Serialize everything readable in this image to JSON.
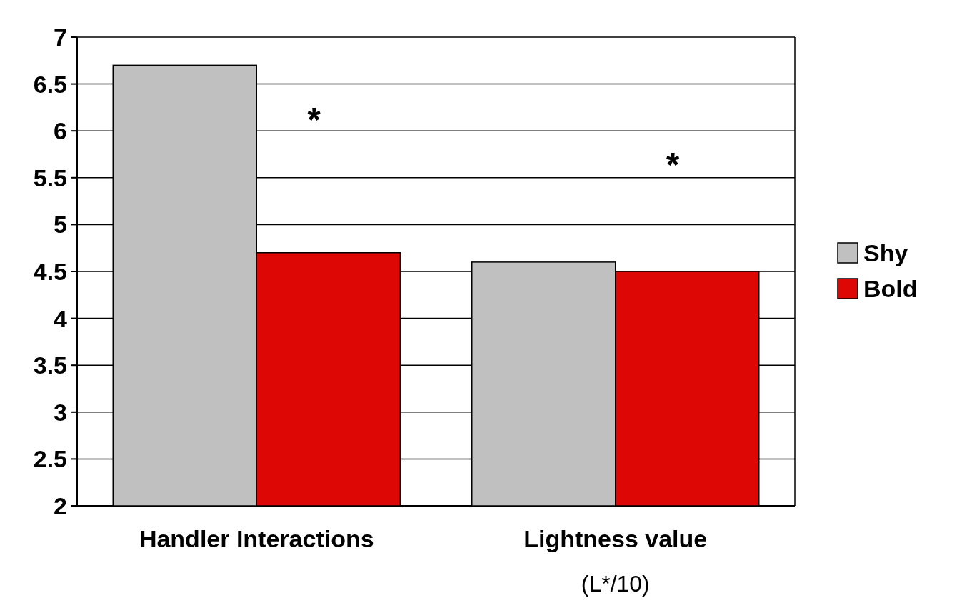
{
  "chart_data": {
    "type": "bar",
    "categories": [
      "Handler Interactions",
      "Lightness value"
    ],
    "series": [
      {
        "name": "Shy",
        "color": "#c0c0c0",
        "values": [
          6.7,
          4.6
        ]
      },
      {
        "name": "Bold",
        "color": "#dd0806",
        "values": [
          4.7,
          4.5
        ]
      }
    ],
    "ylim": [
      2,
      7
    ],
    "yticks": [
      2,
      2.5,
      3,
      3.5,
      4,
      4.5,
      5,
      5.5,
      6,
      6.5,
      7
    ],
    "grid": "y",
    "legend": "right",
    "annotations": [
      "*",
      "*",
      "(L*/10)"
    ]
  }
}
